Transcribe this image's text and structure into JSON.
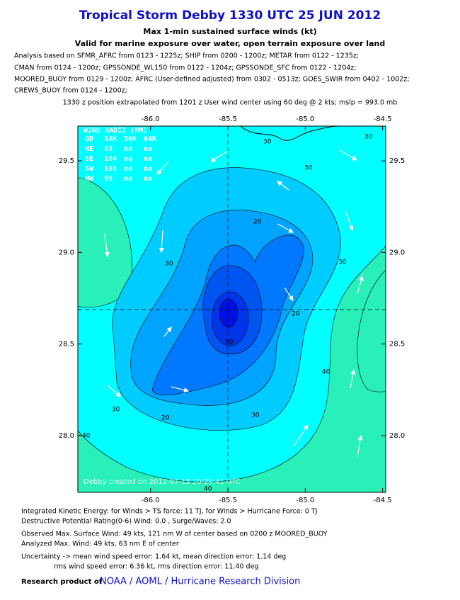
{
  "chart_data": {
    "type": "contour",
    "title": "Tropical Storm Debby 1330 UTC 25 JUN 2012",
    "subtitle": [
      "Max 1-min sustained surface winds (kt)",
      "Valid for marine exposure over water, open terrain exposure over land"
    ],
    "analysis": [
      "Analysis based on SFMR_AFRC from 0123 - 1225z; SHIP from 0200 - 1200z; METAR from 0122 - 1235z;",
      "CMAN from 0124 - 1200z; GPSSONDE_WL150 from 0122 - 1204z; GPSSONDE_SFC from 0122 - 1204z;",
      "MOORED_BUOY from 0129 - 1200z; AFRC (User-defined adjusted) from 0302 - 0513z; GOES_SWIR from 0402 - 1002z;",
      "CREWS_BUOY from 0124 - 1200z;"
    ],
    "position_note": "1330 z position extrapolated from 1201 z User wind center using 60 deg @ 2 kts; mslp = 993.0 mb",
    "xlim": [
      -86.47,
      -84.48
    ],
    "ylim": [
      27.69,
      29.69
    ],
    "xticks": [
      {
        "value": -86,
        "label": "-86.0"
      },
      -85.5,
      {
        "value": -85,
        "label": "-85.0"
      },
      -84.5
    ],
    "yticks": [
      {
        "value": 28,
        "label": "28.0"
      },
      28.5,
      {
        "value": 29,
        "label": "29.0"
      },
      29.5
    ],
    "wind_radii": {
      "title": "WIND RADII (NM)",
      "rows": [
        [
          "QD",
          "34K",
          "50K",
          "64K"
        ],
        [
          "NE",
          "83",
          "na",
          "na"
        ],
        [
          "SE",
          "104",
          "na",
          "na"
        ],
        [
          "SW",
          "103",
          "na",
          "na"
        ],
        [
          "NW",
          "96",
          "na",
          "na"
        ]
      ]
    },
    "contour_labels": [
      "30",
      "20",
      "30",
      "30",
      "30",
      "20",
      "30",
      "20",
      "10",
      "30",
      "40",
      "40",
      "40",
      "30"
    ],
    "watermark": "Debby    created on 2012-07-15 20:29:41 UTC"
  },
  "footer": {
    "lines": [
      "Integrated Kinetic Energy: for Winds > TS force: 11 TJ, for Winds > Hurricane Force: 0 TJ",
      "Destructive Potential Rating(0-6)  Wind: 0.0 , Surge/Waves: 2.0",
      "Observed Max. Surface Wind: 49 kts, 121 nm W of center based on 0200 z MOORED_BUOY",
      "Analyzed Max. Wind: 49 kts, 63 nm  E of center",
      "Uncertainty -> mean wind speed error: 1.64 kt, mean direction error: 1.14 deg",
      "rms wind speed error: 6.36 kt, rms direction error: 11.40 deg"
    ],
    "research_label": "Research product of",
    "research_org": "NOAA  /  AOML  /  Hurricane Research Division"
  }
}
